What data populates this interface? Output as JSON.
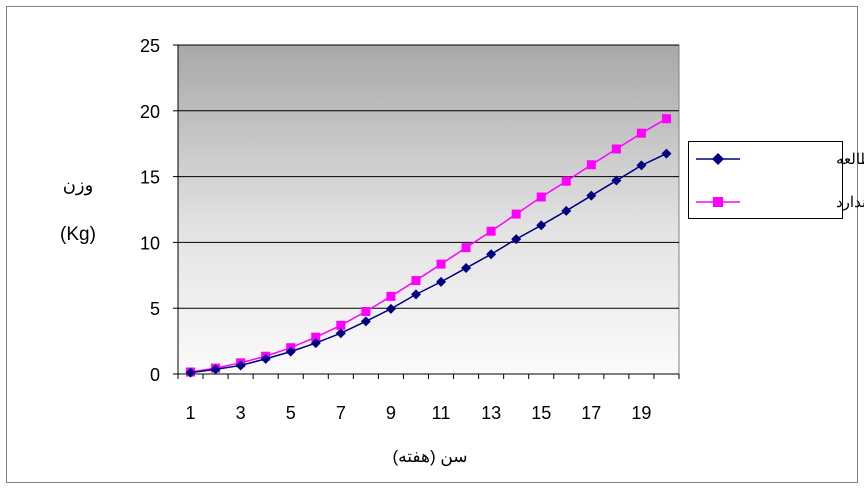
{
  "chart_data": {
    "type": "line",
    "title": "",
    "xlabel": "سن (هفته)",
    "ylabel_line1": "وزن",
    "ylabel_line2": "(Kg)",
    "x": [
      1,
      2,
      3,
      4,
      5,
      6,
      7,
      8,
      9,
      10,
      11,
      12,
      13,
      14,
      15,
      16,
      17,
      18,
      19,
      20
    ],
    "x_tick_labels": [
      "1",
      "3",
      "5",
      "7",
      "9",
      "11",
      "13",
      "15",
      "17",
      "19"
    ],
    "x_tick_values": [
      1,
      3,
      5,
      7,
      9,
      11,
      13,
      15,
      17,
      19
    ],
    "ylim": [
      0,
      25
    ],
    "y_ticks": [
      0,
      5,
      10,
      15,
      20,
      25
    ],
    "grid": true,
    "legend_position": "right",
    "series": [
      {
        "name": "میانگین مطالعه",
        "color": "#000080",
        "marker": "diamond",
        "values": [
          0.1,
          0.35,
          0.65,
          1.15,
          1.7,
          2.35,
          3.1,
          4.0,
          4.95,
          6.05,
          7.0,
          8.05,
          9.1,
          10.25,
          11.3,
          12.4,
          13.55,
          14.7,
          15.85,
          16.75
        ]
      },
      {
        "name": "گله استاندارد",
        "color": "#ff00ff",
        "marker": "square",
        "values": [
          0.15,
          0.45,
          0.85,
          1.35,
          2.0,
          2.8,
          3.7,
          4.75,
          5.9,
          7.1,
          8.35,
          9.6,
          10.85,
          12.15,
          13.45,
          14.65,
          15.9,
          17.1,
          18.3,
          19.4
        ]
      }
    ]
  }
}
